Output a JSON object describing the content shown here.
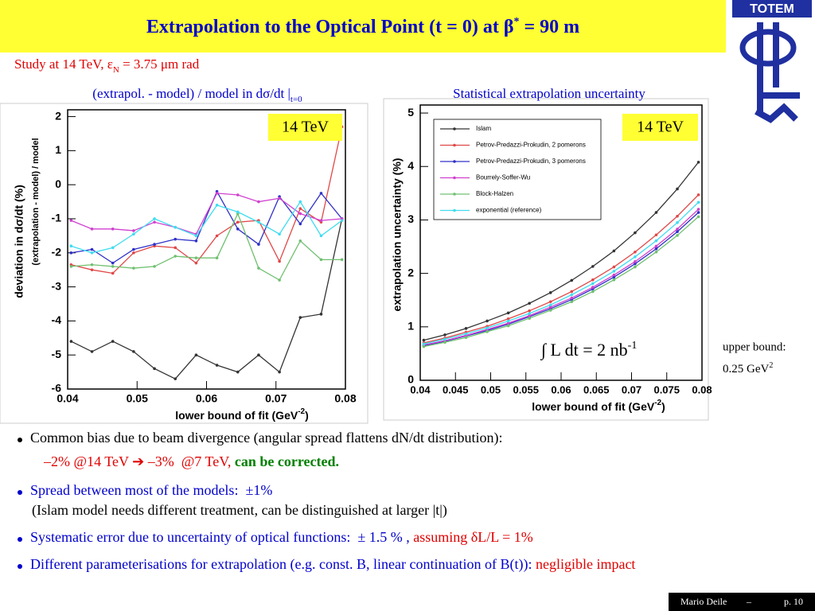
{
  "slide": {
    "title": [
      "Extrapolation to the Optical Point (t = 0) at β",
      "*",
      " = 90 m"
    ],
    "subtitle": [
      "Study at 14 TeV, ε",
      "N",
      " = 3.75 μm rad"
    ],
    "logo": "TOTEM",
    "note": [
      "upper bound:",
      "0.25 GeV",
      "2"
    ],
    "footer": {
      "author": "Mario Deile",
      "sep": "–",
      "page": "p. 10"
    }
  },
  "bullets": [
    {
      "lines": [
        [
          {
            "text": "Common bias due to beam divergence (angular spread flattens dN/dt distribution):",
            "color": "#000000"
          }
        ],
        [
          {
            "text": "–2% @14 TeV ➔ –3%  @7 TeV, ",
            "color": "#e00000"
          },
          {
            "text": "can be corrected.",
            "color": "#008000",
            "bold": true
          }
        ]
      ]
    },
    {
      "lines": [
        [
          {
            "text": "Spread between most of the models:  ±1%",
            "color": "#0000cc"
          }
        ],
        [
          {
            "text": "(Islam model needs different treatment, can be distinguished at larger |t|)",
            "color": "#000000"
          }
        ]
      ]
    },
    {
      "lines": [
        [
          {
            "text": "Systematic error due to uncertainty of optical functions:  ± 1.5 % , ",
            "color": "#0000cc"
          },
          {
            "text": "assuming δL/L = 1%",
            "color": "#e00000"
          }
        ]
      ]
    },
    {
      "lines": [
        [
          {
            "text": "Different parameterisations for extrapolation (e.g. const. B, linear continuation of B(t)): ",
            "color": "#0000cc"
          },
          {
            "text": "negligible impact",
            "color": "#e00000"
          }
        ]
      ]
    }
  ],
  "chart_data": [
    {
      "type": "line",
      "title": [
        "(extrapol. - model) / model in dσ/dt |",
        "t=0"
      ],
      "ylabel": "deviation in dσ/dt   (%)",
      "ylabel2": "(extrapolation - model) / model",
      "xlabel": [
        "lower bound of fit  (GeV",
        "-2",
        ")"
      ],
      "annotation": "14 TeV",
      "x": [
        0.0405,
        0.0435,
        0.0465,
        0.0495,
        0.0525,
        0.0555,
        0.0585,
        0.0615,
        0.0645,
        0.0675,
        0.0705,
        0.0735,
        0.0765,
        0.0795
      ],
      "series": [
        {
          "color": "#333333",
          "values": [
            -4.6,
            -4.9,
            -4.6,
            -4.9,
            -5.4,
            -5.7,
            -5.0,
            -5.3,
            -5.5,
            -5.0,
            -5.5,
            -3.9,
            -3.8,
            -1.0
          ]
        },
        {
          "color": "#e04848",
          "values": [
            -2.35,
            -2.5,
            -2.6,
            -2.0,
            -1.8,
            -1.85,
            -2.3,
            -1.5,
            -1.1,
            -1.05,
            -2.25,
            -0.7,
            -1.1,
            1.7
          ]
        },
        {
          "color": "#3030c8",
          "values": [
            -2.0,
            -1.9,
            -2.3,
            -1.9,
            -1.75,
            -1.6,
            -1.65,
            -0.2,
            -1.3,
            -1.75,
            -0.35,
            -1.15,
            -0.25,
            -1.0
          ]
        },
        {
          "color": "#d040d0",
          "values": [
            -1.05,
            -1.3,
            -1.3,
            -1.35,
            -1.1,
            -1.25,
            -1.45,
            -0.25,
            -0.3,
            -0.5,
            -0.4,
            -0.85,
            -1.05,
            -1.0
          ]
        },
        {
          "color": "#70c070",
          "values": [
            -2.4,
            -2.35,
            -2.4,
            -2.45,
            -2.4,
            -2.1,
            -2.15,
            -2.15,
            -0.85,
            -2.45,
            -2.8,
            -1.65,
            -2.2,
            -2.2
          ]
        },
        {
          "color": "#40dcf0",
          "values": [
            -1.8,
            -2.0,
            -1.85,
            -1.45,
            -1.0,
            -1.25,
            -1.5,
            -0.6,
            -0.8,
            -1.1,
            -1.45,
            -0.5,
            -1.5,
            -1.05
          ]
        }
      ],
      "xlim": [
        0.04,
        0.08
      ],
      "ylim": [
        -6,
        2.2
      ],
      "xticks": [
        0.04,
        0.05,
        0.06,
        0.07,
        0.08
      ],
      "yticks": [
        -6,
        -5,
        -4,
        -3,
        -2,
        -1,
        0,
        1,
        2
      ]
    },
    {
      "type": "line",
      "title": [
        "Statistical extrapolation uncertainty"
      ],
      "ylabel": "extrapolation uncertainty   (%)",
      "xlabel": [
        "lower bound of fit  (GeV",
        "-2",
        ")"
      ],
      "annotation": "14 TeV",
      "integral": [
        "∫ L dt = 2 nb",
        "-1"
      ],
      "legend": "upper left",
      "x": [
        0.0405,
        0.0435,
        0.0465,
        0.0495,
        0.0525,
        0.0555,
        0.0585,
        0.0615,
        0.0645,
        0.0675,
        0.0705,
        0.0735,
        0.0765,
        0.0795
      ],
      "series": [
        {
          "name": "Islam",
          "color": "#333333",
          "values": [
            0.75,
            0.85,
            0.97,
            1.11,
            1.26,
            1.44,
            1.64,
            1.87,
            2.13,
            2.42,
            2.76,
            3.14,
            3.58,
            4.08
          ]
        },
        {
          "name": "Petrov-Predazzi-Prokudin, 2 pomerons",
          "color": "#e04848",
          "values": [
            0.7,
            0.79,
            0.9,
            1.01,
            1.15,
            1.3,
            1.47,
            1.66,
            1.88,
            2.12,
            2.4,
            2.72,
            3.07,
            3.47
          ]
        },
        {
          "name": "Petrov-Predazzi-Prokudin, 3 pomerons",
          "color": "#3030c8",
          "values": [
            0.65,
            0.73,
            0.83,
            0.93,
            1.05,
            1.19,
            1.34,
            1.51,
            1.71,
            1.93,
            2.18,
            2.46,
            2.78,
            3.14
          ]
        },
        {
          "name": "Bourrely-Soffer-Wu",
          "color": "#d040d0",
          "values": [
            0.66,
            0.74,
            0.84,
            0.95,
            1.07,
            1.21,
            1.37,
            1.54,
            1.74,
            1.97,
            2.22,
            2.51,
            2.83,
            3.2
          ]
        },
        {
          "name": "Block-Halzen",
          "color": "#70c070",
          "values": [
            0.63,
            0.71,
            0.8,
            0.91,
            1.02,
            1.16,
            1.31,
            1.47,
            1.66,
            1.88,
            2.12,
            2.4,
            2.71,
            3.06
          ]
        },
        {
          "name": "exponential (reference)",
          "color": "#40dcf0",
          "values": [
            0.68,
            0.77,
            0.87,
            0.98,
            1.11,
            1.25,
            1.41,
            1.6,
            1.81,
            2.04,
            2.31,
            2.61,
            2.95,
            3.33
          ]
        }
      ],
      "xlim": [
        0.04,
        0.08
      ],
      "ylim": [
        0,
        5.15
      ],
      "xticks": [
        0.04,
        0.045,
        0.05,
        0.055,
        0.06,
        0.065,
        0.07,
        0.075,
        0.08
      ],
      "yticks": [
        0,
        1,
        2,
        3,
        4,
        5
      ]
    }
  ]
}
